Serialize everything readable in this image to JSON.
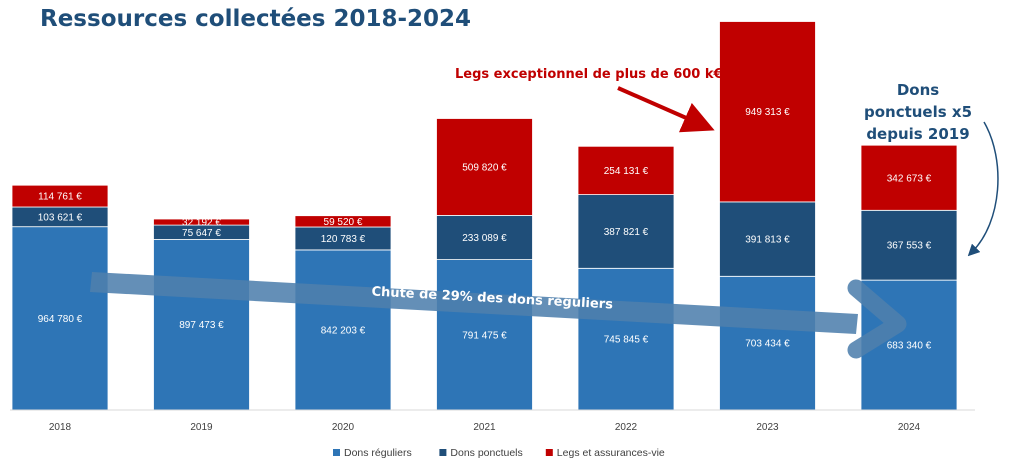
{
  "chart_data": {
    "type": "bar",
    "stacked": true,
    "title": "Ressources collectées 2018-2024",
    "categories": [
      "2018",
      "2019",
      "2020",
      "2021",
      "2022",
      "2023",
      "2024"
    ],
    "series": [
      {
        "name": "Dons réguliers",
        "color": "#2e75b6",
        "values": [
          964780,
          897473,
          842203,
          791475,
          745845,
          703434,
          683340
        ],
        "labels": [
          "964 780 €",
          "897 473 €",
          "842 203 €",
          "791 475 €",
          "745 845 €",
          "703 434 €",
          "683 340 €"
        ]
      },
      {
        "name": "Dons ponctuels",
        "color": "#1f4e79",
        "values": [
          103621,
          75647,
          120783,
          233089,
          387821,
          391813,
          367553
        ],
        "labels": [
          "103 621 €",
          "75 647 €",
          "120 783 €",
          "233 089 €",
          "387 821 €",
          "391 813 €",
          "367 553 €"
        ]
      },
      {
        "name": "Legs et assurances-vie",
        "color": "#c00000",
        "values": [
          114761,
          32192,
          59520,
          509820,
          254131,
          949313,
          342673
        ],
        "labels": [
          "114 761 €",
          "32 192 €",
          "59 520 €",
          "509 820 €",
          "254 131 €",
          "949 313 €",
          "342 673 €"
        ]
      }
    ],
    "ylim": [
      0,
      2100000
    ],
    "grid": false,
    "legend_position": "bottom",
    "annotations": {
      "legs": "Legs exceptionnel de plus de 600 k€",
      "dons_lines": [
        "Dons",
        "ponctuels x5",
        "depuis 2019"
      ],
      "trend": "Chute de 29% des dons réguliers"
    }
  }
}
